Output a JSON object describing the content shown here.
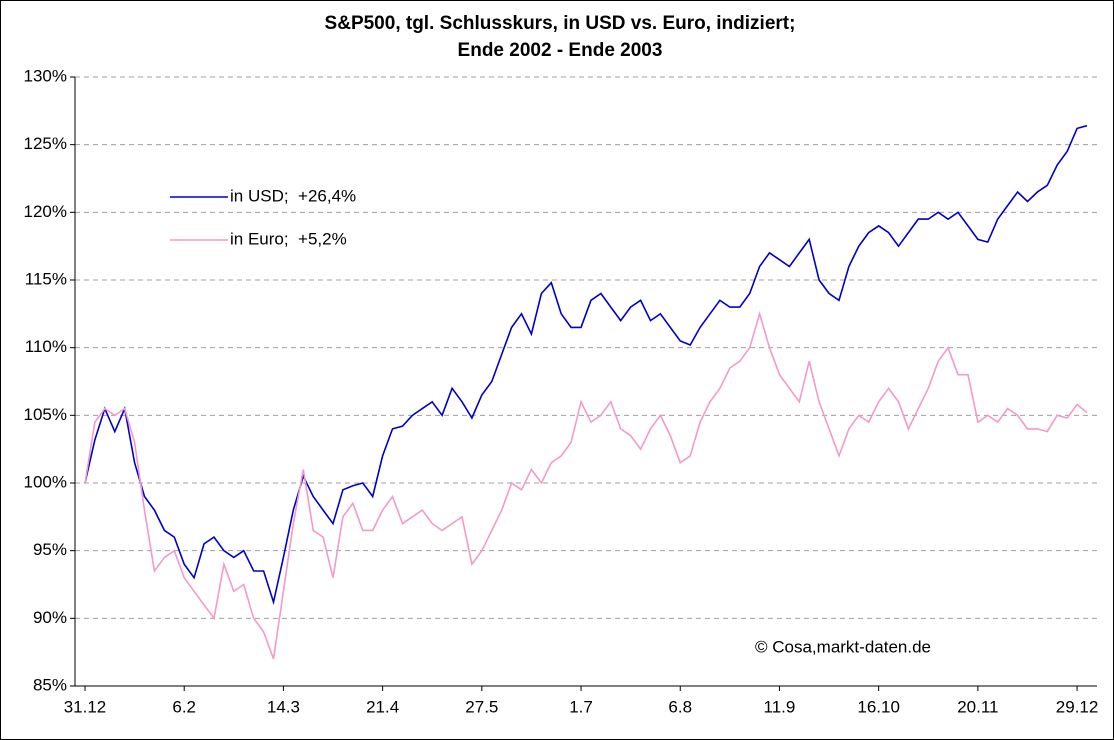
{
  "chart_data": {
    "type": "line",
    "title": [
      "S&P500, tgl. Schlusskurs, in USD vs. Euro, indiziert;",
      "Ende 2002 - Ende 2003"
    ],
    "annotation": "© Cosa,markt-daten.de",
    "categories": [
      "31.12",
      null,
      null,
      null,
      null,
      null,
      null,
      null,
      null,
      null,
      "6.2",
      null,
      null,
      null,
      null,
      null,
      null,
      null,
      null,
      null,
      "14.3",
      null,
      null,
      null,
      null,
      null,
      null,
      null,
      null,
      null,
      "21.4",
      null,
      null,
      null,
      null,
      null,
      null,
      null,
      null,
      null,
      "27.5",
      null,
      null,
      null,
      null,
      null,
      null,
      null,
      null,
      null,
      "1.7",
      null,
      null,
      null,
      null,
      null,
      null,
      null,
      null,
      null,
      "6.8",
      null,
      null,
      null,
      null,
      null,
      null,
      null,
      null,
      null,
      "11.9",
      null,
      null,
      null,
      null,
      null,
      null,
      null,
      null,
      null,
      "16.10",
      null,
      null,
      null,
      null,
      null,
      null,
      null,
      null,
      null,
      "20.11",
      null,
      null,
      null,
      null,
      null,
      null,
      null,
      null,
      null,
      "29.12",
      null
    ],
    "series": [
      {
        "name": "in USD;  +26,4%",
        "color": "#0000cc",
        "values": [
          100,
          103.2,
          105.5,
          103.8,
          105.5,
          101.5,
          99,
          98,
          96.5,
          96,
          94,
          93,
          95.5,
          96,
          95,
          94.5,
          95,
          93.5,
          93.5,
          91.2,
          94.5,
          98,
          100.5,
          99,
          98,
          97,
          99.5,
          99.8,
          100,
          99,
          102,
          104,
          104.2,
          105,
          105.5,
          106,
          105,
          107,
          106,
          104.8,
          106.5,
          107.5,
          109.5,
          111.5,
          112.5,
          111,
          114,
          114.8,
          112.5,
          111.5,
          111.5,
          113.5,
          114,
          113,
          112,
          113,
          113.5,
          112,
          112.5,
          111.5,
          110.5,
          110.2,
          111.5,
          112.5,
          113.5,
          113,
          113,
          114,
          116,
          117,
          116.5,
          116,
          117,
          118,
          115,
          114,
          113.5,
          116,
          117.5,
          118.5,
          119,
          118.5,
          117.5,
          118.5,
          119.5,
          119.5,
          120,
          119.5,
          120,
          119,
          118,
          117.8,
          119.5,
          120.5,
          121.5,
          120.8,
          121.5,
          122,
          123.5,
          124.5,
          126.2,
          126.4
        ]
      },
      {
        "name": "in Euro;  +5,2%",
        "color": "#f49ac8",
        "values": [
          100,
          104.5,
          105.5,
          105,
          105.5,
          103,
          98,
          93.5,
          94.5,
          95,
          93,
          92,
          91,
          90,
          94,
          92,
          92.5,
          90,
          89,
          87,
          92,
          97,
          101,
          96.5,
          96,
          93,
          97.5,
          98.5,
          96.5,
          96.5,
          98,
          99,
          97,
          97.5,
          98,
          97,
          96.5,
          97,
          97.5,
          94,
          95,
          96.5,
          98,
          100,
          99.5,
          101,
          100,
          101.5,
          102,
          103,
          106,
          104.5,
          105,
          106,
          104,
          103.5,
          102.5,
          104,
          105,
          103.5,
          101.5,
          102,
          104.5,
          106,
          107,
          108.5,
          109,
          110,
          112.5,
          110,
          108,
          107,
          106,
          109,
          106,
          104,
          102,
          104,
          105,
          104.5,
          106,
          107,
          106,
          104,
          105.5,
          107,
          109,
          110,
          108,
          108,
          104.5,
          105,
          104.5,
          105.5,
          105,
          104,
          104,
          103.8,
          105,
          104.8,
          105.8,
          105.2
        ]
      }
    ],
    "ylim": [
      85,
      130
    ],
    "yticks": [
      {
        "value": 85,
        "label": "85%"
      },
      {
        "value": 90,
        "label": "90%"
      },
      {
        "value": 95,
        "label": "95%"
      },
      {
        "value": 100,
        "label": "100%"
      },
      {
        "value": 105,
        "label": "105%"
      },
      {
        "value": 110,
        "label": "110%"
      },
      {
        "value": 115,
        "label": "115%"
      },
      {
        "value": 120,
        "label": "120%"
      },
      {
        "value": 125,
        "label": "125%"
      },
      {
        "value": 130,
        "label": "130%"
      }
    ],
    "grid": true
  }
}
